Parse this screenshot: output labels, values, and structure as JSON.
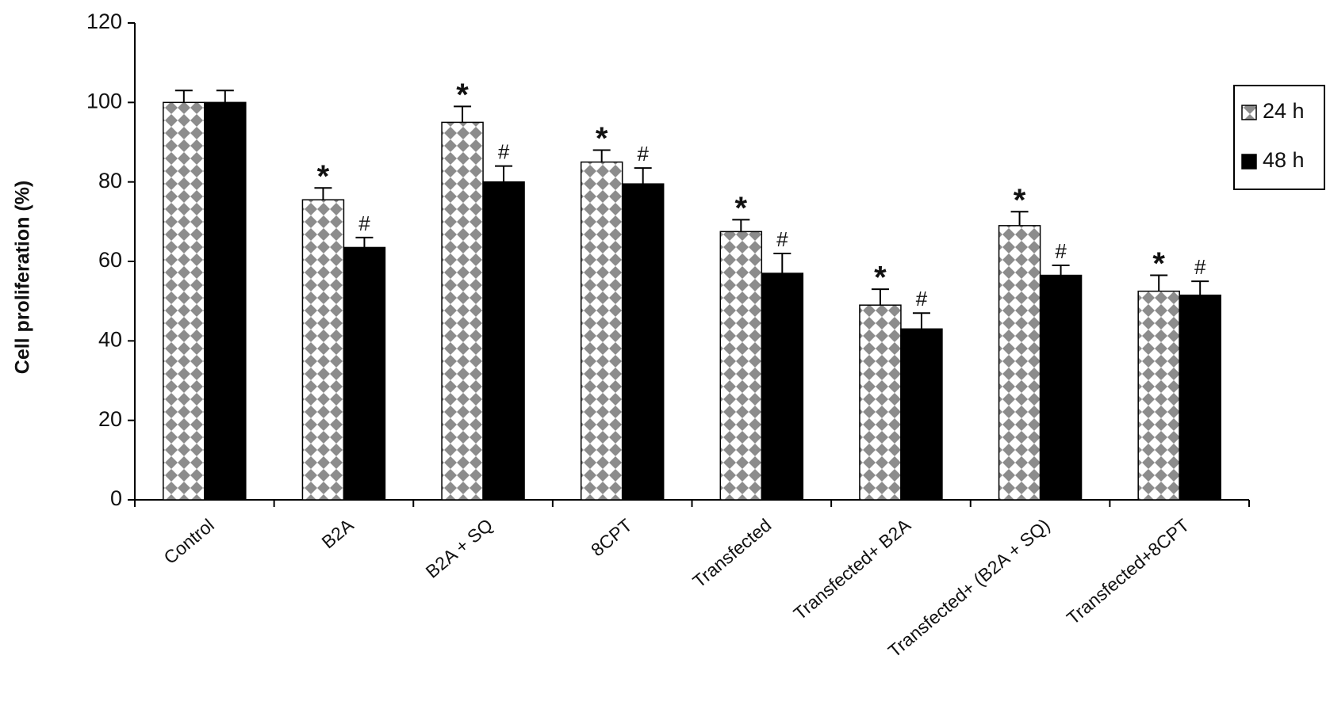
{
  "chart_data": {
    "type": "bar",
    "ylabel": "Cell proliferation (%)",
    "categories": [
      "Control",
      "B2A",
      "B2A + SQ",
      "8CPT",
      "Transfected",
      "Transfected+ B2A",
      "Transfected+ (B2A + SQ)",
      "Transfected+8CPT"
    ],
    "series": [
      {
        "name": "24 h",
        "color": "#8c8c8c",
        "pattern": "diamond",
        "values": [
          100,
          75.5,
          95,
          85,
          67.5,
          49,
          69,
          52.5
        ],
        "errors": [
          3,
          3,
          4,
          3,
          3,
          4,
          3.5,
          4
        ],
        "markers": [
          null,
          "*",
          "*",
          "*",
          "*",
          "*",
          "*",
          "*"
        ]
      },
      {
        "name": "48 h",
        "color": "#000000",
        "values": [
          100,
          63.5,
          80,
          79.5,
          57,
          43,
          56.5,
          51.5
        ],
        "errors": [
          3,
          2.5,
          4,
          4,
          5,
          4,
          2.5,
          3.5
        ],
        "markers": [
          null,
          "#",
          "#",
          "#",
          "#",
          "#",
          "#",
          "#"
        ]
      }
    ],
    "ylim": [
      0,
      120
    ],
    "yticks": [
      0,
      20,
      40,
      60,
      80,
      100,
      120
    ],
    "grid": false,
    "legend": "upper right"
  }
}
